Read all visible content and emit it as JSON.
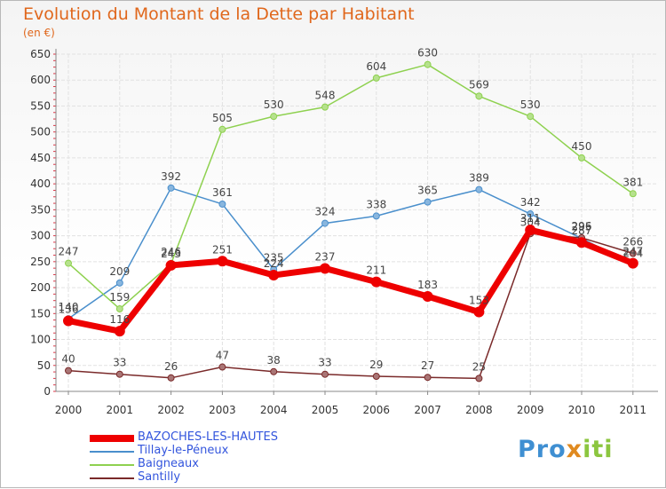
{
  "header": {
    "title": "Evolution du Montant de la Dette par Habitant",
    "unit": "(en €)"
  },
  "logo": {
    "text": "Proxiti",
    "colors": [
      "#3f8fd2",
      "#e08a20",
      "#8cc63f"
    ]
  },
  "chart_data": {
    "type": "line",
    "title": "Evolution du Montant de la Dette par Habitant",
    "subtitle": "(en €)",
    "xlabel": "",
    "ylabel": "",
    "x": [
      "2000",
      "2001",
      "2002",
      "2003",
      "2004",
      "2005",
      "2006",
      "2007",
      "2008",
      "2009",
      "2010",
      "2011"
    ],
    "ylim": [
      0,
      650
    ],
    "yticks": [
      0,
      50,
      100,
      150,
      200,
      250,
      300,
      350,
      400,
      450,
      500,
      550,
      600,
      650
    ],
    "grid": true,
    "legend_position": "bottom-left",
    "series": [
      {
        "name": "Tillay-le-Péneux",
        "color": "#4a8fcc",
        "values": [
          140,
          209,
          392,
          361,
          235,
          324,
          338,
          365,
          389,
          342,
          295,
          244
        ]
      },
      {
        "name": "Baigneaux",
        "color": "#8ed14f",
        "values": [
          247,
          159,
          246,
          505,
          530,
          548,
          604,
          630,
          569,
          530,
          450,
          381
        ]
      },
      {
        "name": "Santilly",
        "color": "#7a2a2a",
        "values": [
          40,
          33,
          26,
          47,
          38,
          33,
          29,
          27,
          25,
          304,
          296,
          266
        ]
      },
      {
        "name": "BAZOCHES-LES-HAUTES",
        "color": "#ee0000",
        "values": [
          136,
          116,
          243,
          251,
          224,
          237,
          211,
          183,
          153,
          311,
          287,
          247
        ]
      }
    ],
    "legend_order": [
      "BAZOCHES-LES-HAUTES",
      "Tillay-le-Péneux",
      "Baigneaux",
      "Santilly"
    ]
  }
}
